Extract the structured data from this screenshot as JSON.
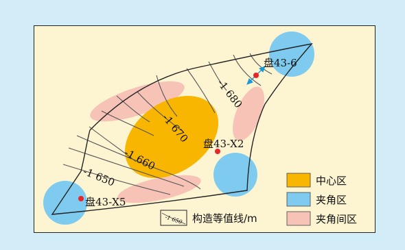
{
  "wells": {
    "w6": "盘43-6",
    "x2": "盘43-X2",
    "x5": "盘43-X5"
  },
  "contours": {
    "c1650": "-1 650",
    "c1660": "-1 660",
    "c1670": "-1 670",
    "c1680": "-1 680"
  },
  "legend": {
    "sample_value": "-1 650",
    "contour_label": "构造等值线/m",
    "center": "中心区",
    "corner": "夹角区",
    "between": "夹角间区"
  },
  "colors": {
    "center": "#f8b600",
    "corner": "#7fcbef",
    "between": "#f7c3b7",
    "well": "#e8262a",
    "arrow": "#1a9ad6"
  }
}
